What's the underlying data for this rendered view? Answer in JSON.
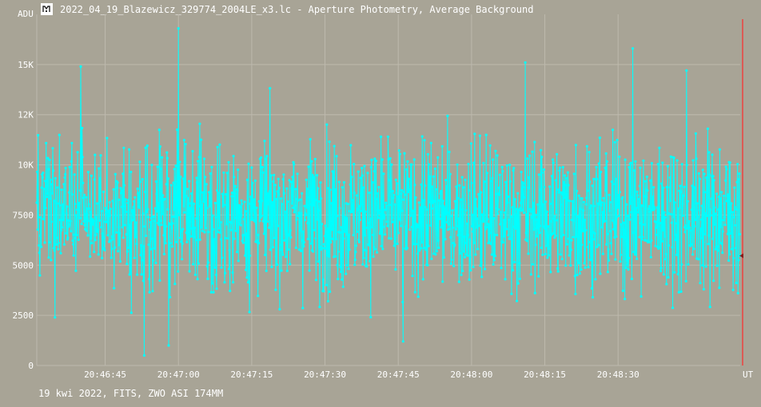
{
  "window": {
    "title": "2022_04_19_Blazewicz_329774_2004LE_x3.lc - Aperture Photometry, Average Background",
    "icon": "app-logo-icon"
  },
  "footer": {
    "text": "19 kwi 2022, FITS, ZWO ASI 174MM"
  },
  "colors": {
    "background": "#a8a496",
    "series": "#00ffff",
    "cursor": "#ff2a2a",
    "grid": "#bdb9ad",
    "text": "#ffffff"
  },
  "chart_data": {
    "type": "line",
    "ylabel": "ADU",
    "xlabel": "UT",
    "x_start": "20:46:31",
    "x_end": "20:48:55",
    "xlim_seconds_of_day": [
      74791,
      74935
    ],
    "ylim": [
      0,
      17500
    ],
    "y_ticks": [
      0,
      2500,
      5000,
      7500,
      10000,
      12500,
      15000
    ],
    "y_tick_labels": [
      "0",
      "2500",
      "5000",
      "7500",
      "10K",
      "12K",
      "15K"
    ],
    "x_ticks": [
      "20:46:45",
      "20:47:00",
      "20:47:15",
      "20:47:30",
      "20:47:45",
      "20:48:00",
      "20:48:15",
      "20:48:30"
    ],
    "grid": true,
    "marker": "circle",
    "cursor_time": "20:48:56",
    "series": [
      {
        "baseline_adu": 7500,
        "noise_std_adu": 2300,
        "y_min_adu": 500,
        "y_max_adu": 16800,
        "points_per_second": 11,
        "notable_peaks": [
          {
            "x": "20:47:00",
            "y": 16800
          },
          {
            "x": "20:48:33",
            "y": 15800
          },
          {
            "x": "20:46:40",
            "y": 14900
          },
          {
            "x": "20:48:11",
            "y": 15100
          },
          {
            "x": "20:48:44",
            "y": 14700
          }
        ],
        "notable_dips": [
          {
            "x": "20:46:53",
            "y": 500
          },
          {
            "x": "20:46:58",
            "y": 1000
          },
          {
            "x": "20:47:46",
            "y": 1200
          }
        ]
      }
    ]
  }
}
